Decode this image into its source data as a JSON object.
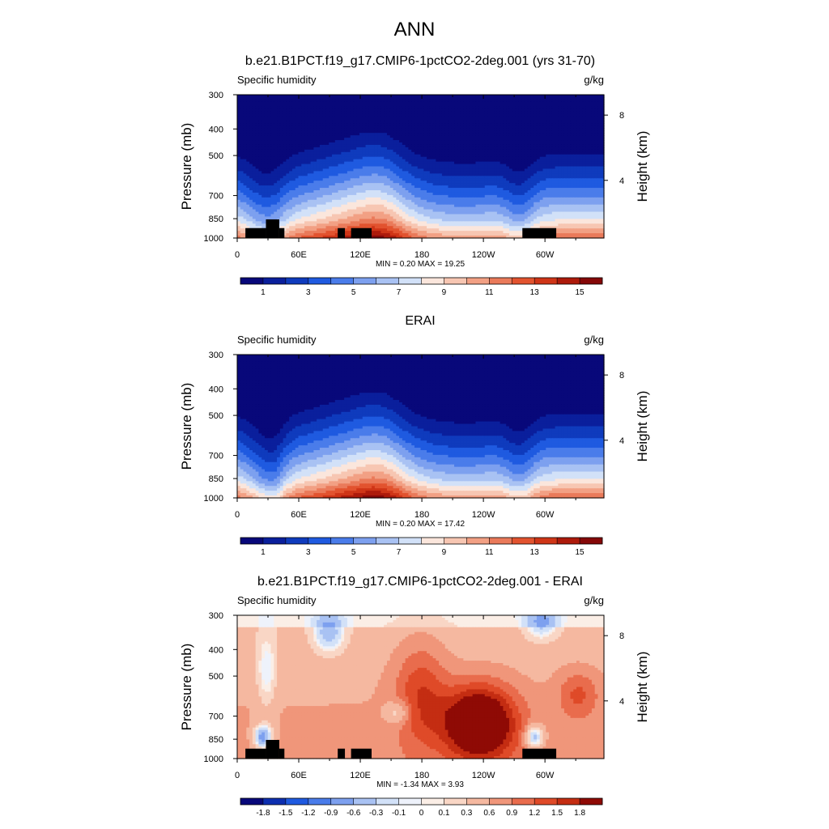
{
  "figure_title": "ANN",
  "colors": {
    "main_scale": [
      "#08087a",
      "#0a1f9c",
      "#0f3bbd",
      "#1f5ae0",
      "#4a7cea",
      "#7da0ef",
      "#a9c2f3",
      "#d2e1f8",
      "#fbe6dc",
      "#f7c6b2",
      "#f2a084",
      "#ea7a5a",
      "#e2532f",
      "#cf3517",
      "#ad1a0b",
      "#850808"
    ],
    "diff_scale": [
      "#08087a",
      "#0d2fb0",
      "#1f5ae0",
      "#4a7cea",
      "#7da0ef",
      "#a9c2f3",
      "#d2e1f8",
      "#eef2fb",
      "#fbeee6",
      "#f9d6c5",
      "#f5b8a0",
      "#f0967a",
      "#e96c4d",
      "#df4a28",
      "#c42d12",
      "#8f0a05"
    ],
    "land": "#000000"
  },
  "chart_data": [
    {
      "type": "heatmap",
      "title": "b.e21.B1PCT.f19_g17.CMIP6-1pctCO2-2deg.001 (yrs 31-70)",
      "left_label": "Specific humidity",
      "units": "g/kg",
      "ylabel": "Pressure (mb)",
      "y2label": "Height (km)",
      "x_ticks": [
        "0",
        "60E",
        "120E",
        "180",
        "120W",
        "60W"
      ],
      "x_tick_lons": [
        0,
        60,
        120,
        180,
        240,
        300
      ],
      "xlim": [
        0,
        357.5
      ],
      "y_ticks": [
        "300",
        "400",
        "500",
        "700",
        "850",
        "1000"
      ],
      "y_tick_values": [
        300,
        400,
        500,
        700,
        850,
        1000
      ],
      "ylim": [
        300,
        1000
      ],
      "height_ticks": [
        "8",
        "4"
      ],
      "height_tick_pressures": [
        356,
        616
      ],
      "stats": "MIN =   0.20  MAX =  19.25",
      "colorbar_labels": [
        "1",
        "3",
        "5",
        "7",
        "9",
        "11",
        "13",
        "15"
      ],
      "colorbar_label_positions": [
        1,
        3,
        5,
        7,
        9,
        11,
        13,
        15
      ],
      "colorbar_levels": 16,
      "min": 0.2,
      "max": 19.25
    },
    {
      "type": "heatmap",
      "title": "ERAI",
      "left_label": "Specific humidity",
      "units": "g/kg",
      "ylabel": "Pressure (mb)",
      "y2label": "Height (km)",
      "x_ticks": [
        "0",
        "60E",
        "120E",
        "180",
        "120W",
        "60W"
      ],
      "x_tick_lons": [
        0,
        60,
        120,
        180,
        240,
        300
      ],
      "xlim": [
        0,
        357.5
      ],
      "y_ticks": [
        "300",
        "400",
        "500",
        "700",
        "850",
        "1000"
      ],
      "y_tick_values": [
        300,
        400,
        500,
        700,
        850,
        1000
      ],
      "ylim": [
        300,
        1000
      ],
      "height_ticks": [
        "8",
        "4"
      ],
      "height_tick_pressures": [
        356,
        616
      ],
      "stats": "MIN =   0.20  MAX =  17.42",
      "colorbar_labels": [
        "1",
        "3",
        "5",
        "7",
        "9",
        "11",
        "13",
        "15"
      ],
      "colorbar_label_positions": [
        1,
        3,
        5,
        7,
        9,
        11,
        13,
        15
      ],
      "colorbar_levels": 16,
      "min": 0.2,
      "max": 17.42
    },
    {
      "type": "heatmap",
      "title": "b.e21.B1PCT.f19_g17.CMIP6-1pctCO2-2deg.001 - ERAI",
      "left_label": "Specific humidity",
      "units": "g/kg",
      "ylabel": "Pressure (mb)",
      "y2label": "Height (km)",
      "x_ticks": [
        "0",
        "60E",
        "120E",
        "180",
        "120W",
        "60W"
      ],
      "x_tick_lons": [
        0,
        60,
        120,
        180,
        240,
        300
      ],
      "xlim": [
        0,
        357.5
      ],
      "y_ticks": [
        "300",
        "400",
        "500",
        "700",
        "850",
        "1000"
      ],
      "y_tick_values": [
        300,
        400,
        500,
        700,
        850,
        1000
      ],
      "ylim": [
        300,
        1000
      ],
      "height_ticks": [
        "8",
        "4"
      ],
      "height_tick_pressures": [
        356,
        616
      ],
      "stats": "MIN =  -1.34  MAX =   3.93",
      "colorbar_labels": [
        "-1.8",
        "-1.5",
        "-1.2",
        "-0.9",
        "-0.6",
        "-0.3",
        "-0.1",
        "0",
        "0.1",
        "0.3",
        "0.6",
        "0.9",
        "1.2",
        "1.5",
        "1.8"
      ],
      "colorbar_label_positions": [
        1,
        2,
        3,
        4,
        5,
        6,
        7,
        8,
        9,
        10,
        11,
        12,
        13,
        14,
        15
      ],
      "colorbar_levels": 16,
      "min": -1.34,
      "max": 3.93
    }
  ]
}
